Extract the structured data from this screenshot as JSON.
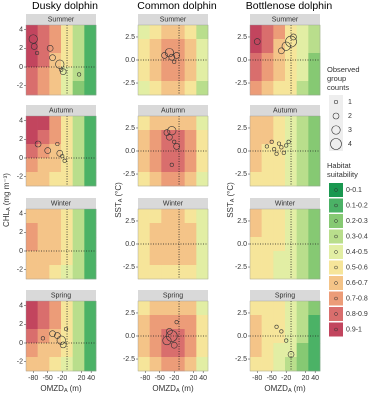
{
  "chart_data": {
    "type": "heatmap",
    "xlabel": {
      "main": "OMZD",
      "sub": "A",
      "unit": "(m)"
    },
    "xlim": [
      -95,
      50
    ],
    "xticks": [
      -80,
      -50,
      -20,
      20,
      40
    ],
    "reference_lines": {
      "x": -10,
      "y": 0
    },
    "columns": [
      {
        "title": "Dusky dolphin",
        "ylabel": {
          "main": "CHL",
          "sub": "A",
          "unit": "(mg m⁻³)"
        },
        "ylim": [
          -3,
          4.5
        ],
        "yticks": [
          -2,
          0,
          2,
          4
        ],
        "panels": [
          {
            "label": "Summer",
            "grid": [
              [
                0.95,
                0.85,
                0.75,
                0.55,
                0.35,
                0.15
              ],
              [
                0.95,
                0.85,
                0.75,
                0.55,
                0.35,
                0.15
              ],
              [
                0.95,
                0.85,
                0.65,
                0.55,
                0.35,
                0.15
              ],
              [
                0.85,
                0.75,
                0.65,
                0.45,
                0.35,
                0.15
              ],
              [
                0.85,
                0.75,
                0.65,
                0.45,
                0.25,
                0.15
              ]
            ],
            "points": {
              "x": [
                -80,
                -78,
                -72,
                -45,
                -40,
                -25,
                -22,
                -18,
                15
              ],
              "y": [
                3,
                2.2,
                1.5,
                2,
                1,
                0.3,
                -0.3,
                -0.5,
                -0.8
              ],
              "count": [
                3,
                2,
                1,
                2,
                2,
                3,
                1,
                2,
                1
              ]
            }
          },
          {
            "label": "Autumn",
            "grid": [
              [
                0.95,
                0.95,
                0.75,
                0.55,
                0.35,
                0.15
              ],
              [
                0.95,
                0.85,
                0.75,
                0.55,
                0.35,
                0.15
              ],
              [
                0.85,
                0.75,
                0.65,
                0.55,
                0.35,
                0.15
              ],
              [
                0.75,
                0.65,
                0.65,
                0.55,
                0.35,
                0.15
              ],
              [
                0.65,
                0.65,
                0.55,
                0.55,
                0.35,
                0.15
              ]
            ],
            "points": {
              "x": [
                -70,
                -50,
                -30,
                -25,
                -20,
                -15
              ],
              "y": [
                1.5,
                0.8,
                1.5,
                0.5,
                0.2,
                -0.3
              ],
              "count": [
                2,
                2,
                1,
                2,
                1,
                1
              ]
            }
          },
          {
            "label": "Winter",
            "grid": [
              [
                0.65,
                0.65,
                0.65,
                0.55,
                0.35,
                0.15
              ],
              [
                0.75,
                0.65,
                0.65,
                0.55,
                0.35,
                0.15
              ],
              [
                0.75,
                0.65,
                0.65,
                0.55,
                0.35,
                0.15
              ],
              [
                0.65,
                0.65,
                0.65,
                0.55,
                0.35,
                0.15
              ],
              [
                0.65,
                0.65,
                0.55,
                0.45,
                0.35,
                0.15
              ]
            ],
            "points": {
              "x": [],
              "y": [],
              "count": []
            }
          },
          {
            "label": "Spring",
            "grid": [
              [
                0.95,
                0.85,
                0.75,
                0.55,
                0.35,
                0.15
              ],
              [
                0.95,
                0.85,
                0.75,
                0.55,
                0.35,
                0.15
              ],
              [
                0.85,
                0.75,
                0.65,
                0.55,
                0.35,
                0.15
              ],
              [
                0.75,
                0.65,
                0.65,
                0.55,
                0.35,
                0.15
              ],
              [
                0.65,
                0.65,
                0.55,
                0.45,
                0.35,
                0.15
              ]
            ],
            "points": {
              "x": [
                -60,
                -40,
                -30,
                -22,
                -18,
                -12
              ],
              "y": [
                0.5,
                1,
                0.8,
                0.3,
                -0.2,
                1.5
              ],
              "count": [
                1,
                2,
                2,
                3,
                2,
                1
              ]
            }
          }
        ]
      },
      {
        "title": "Common dolphin",
        "ylabel": {
          "main": "SST",
          "sub": "A",
          "unit": "(°C)"
        },
        "ylim": [
          -3.8,
          3.8
        ],
        "yticks": [
          -2.5,
          {
            "value": 0,
            "label": "0.0"
          },
          2.5
        ],
        "panels": [
          {
            "label": "Summer",
            "grid": [
              [
                0.45,
                0.55,
                0.65,
                0.65,
                0.55,
                0.35
              ],
              [
                0.55,
                0.65,
                0.75,
                0.75,
                0.65,
                0.45
              ],
              [
                0.55,
                0.65,
                0.75,
                0.75,
                0.65,
                0.45
              ],
              [
                0.55,
                0.65,
                0.75,
                0.75,
                0.65,
                0.45
              ],
              [
                0.45,
                0.55,
                0.65,
                0.65,
                0.55,
                0.35
              ]
            ],
            "points": {
              "x": [
                -40,
                -30,
                -25,
                -20,
                -15
              ],
              "y": [
                0.5,
                0.8,
                0.3,
                -0.2,
                0.5
              ],
              "count": [
                2,
                3,
                2,
                1,
                2
              ]
            }
          },
          {
            "label": "Autumn",
            "grid": [
              [
                0.55,
                0.65,
                0.65,
                0.65,
                0.65,
                0.45
              ],
              [
                0.65,
                0.75,
                0.85,
                0.85,
                0.75,
                0.55
              ],
              [
                0.65,
                0.75,
                0.85,
                0.85,
                0.75,
                0.55
              ],
              [
                0.65,
                0.75,
                0.85,
                0.85,
                0.75,
                0.55
              ],
              [
                0.55,
                0.65,
                0.75,
                0.75,
                0.65,
                0.45
              ]
            ],
            "points": {
              "x": [
                -35,
                -30,
                -25,
                -20,
                -15,
                -25
              ],
              "y": [
                2,
                1.5,
                2.2,
                1,
                0.5,
                -1.5
              ],
              "count": [
                2,
                2,
                3,
                1,
                2,
                1
              ]
            }
          },
          {
            "label": "Winter",
            "grid": [
              [
                0.55,
                0.55,
                0.65,
                0.65,
                0.55,
                0.45
              ],
              [
                0.55,
                0.65,
                0.65,
                0.65,
                0.65,
                0.45
              ],
              [
                0.55,
                0.65,
                0.65,
                0.65,
                0.65,
                0.45
              ],
              [
                0.55,
                0.65,
                0.65,
                0.65,
                0.65,
                0.45
              ],
              [
                0.55,
                0.55,
                0.55,
                0.55,
                0.55,
                0.45
              ]
            ],
            "points": {
              "x": [],
              "y": [],
              "count": []
            }
          },
          {
            "label": "Spring",
            "grid": [
              [
                0.55,
                0.65,
                0.65,
                0.65,
                0.65,
                0.45
              ],
              [
                0.65,
                0.75,
                0.75,
                0.75,
                0.75,
                0.55
              ],
              [
                0.65,
                0.75,
                0.85,
                0.85,
                0.75,
                0.55
              ],
              [
                0.65,
                0.75,
                0.85,
                0.85,
                0.75,
                0.55
              ],
              [
                0.55,
                0.65,
                0.75,
                0.75,
                0.65,
                0.45
              ]
            ],
            "points": {
              "x": [
                -35,
                -30,
                -25,
                -20,
                -15
              ],
              "y": [
                -0.5,
                0.5,
                0,
                -1,
                1.5
              ],
              "count": [
                3,
                2,
                4,
                2,
                1
              ]
            }
          }
        ]
      },
      {
        "title": "Bottlenose dolphin",
        "ylabel": {
          "main": "SST",
          "sub": "A",
          "unit": "(°C)"
        },
        "ylim": [
          -3.8,
          3.8
        ],
        "yticks": [
          -2.5,
          {
            "value": 0,
            "label": "0.0"
          },
          2.5
        ],
        "panels": [
          {
            "label": "Summer",
            "grid": [
              [
                0.95,
                0.85,
                0.75,
                0.55,
                0.45,
                0.35
              ],
              [
                0.95,
                0.85,
                0.65,
                0.55,
                0.45,
                0.35
              ],
              [
                0.85,
                0.75,
                0.65,
                0.55,
                0.45,
                0.25
              ],
              [
                0.85,
                0.75,
                0.65,
                0.55,
                0.45,
                0.25
              ],
              [
                0.75,
                0.65,
                0.55,
                0.55,
                0.35,
                0.25
              ]
            ],
            "points": {
              "x": [
                -80,
                -30,
                -20,
                -10,
                -5
              ],
              "y": [
                2,
                1,
                1.5,
                2,
                2.5
              ],
              "count": [
                2,
                2,
                3,
                4,
                2
              ]
            }
          },
          {
            "label": "Autumn",
            "grid": [
              [
                0.65,
                0.65,
                0.55,
                0.45,
                0.35,
                0.25
              ],
              [
                0.65,
                0.65,
                0.55,
                0.45,
                0.35,
                0.25
              ],
              [
                0.65,
                0.55,
                0.55,
                0.45,
                0.35,
                0.25
              ],
              [
                0.65,
                0.55,
                0.55,
                0.45,
                0.35,
                0.25
              ],
              [
                0.55,
                0.55,
                0.55,
                0.45,
                0.35,
                0.25
              ]
            ],
            "points": {
              "x": [
                -60,
                -50,
                -45,
                -40,
                -35,
                -30,
                -25,
                -20,
                -15
              ],
              "y": [
                0.5,
                1,
                0.2,
                -0.3,
                0.8,
                0.4,
                -0.2,
                0.6,
                1
              ],
              "count": [
                1,
                1,
                1,
                1,
                1,
                1,
                1,
                1,
                1
              ]
            }
          },
          {
            "label": "Winter",
            "grid": [
              [
                0.65,
                0.55,
                0.55,
                0.45,
                0.35,
                0.25
              ],
              [
                0.65,
                0.55,
                0.55,
                0.45,
                0.35,
                0.25
              ],
              [
                0.55,
                0.55,
                0.55,
                0.45,
                0.35,
                0.25
              ],
              [
                0.55,
                0.55,
                0.45,
                0.45,
                0.35,
                0.25
              ],
              [
                0.55,
                0.55,
                0.45,
                0.45,
                0.35,
                0.25
              ]
            ],
            "points": {
              "x": [],
              "y": [],
              "count": []
            }
          },
          {
            "label": "Spring",
            "grid": [
              [
                0.55,
                0.55,
                0.55,
                0.45,
                0.35,
                0.25
              ],
              [
                0.65,
                0.55,
                0.55,
                0.45,
                0.35,
                0.15
              ],
              [
                0.65,
                0.55,
                0.55,
                0.45,
                0.35,
                0.15
              ],
              [
                0.65,
                0.55,
                0.45,
                0.45,
                0.25,
                0.15
              ],
              [
                0.55,
                0.55,
                0.45,
                0.35,
                0.25,
                0.15
              ]
            ],
            "points": {
              "x": [
                -40,
                -30,
                -20,
                -10
              ],
              "y": [
                1,
                0.5,
                -0.5,
                -2
              ],
              "count": [
                1,
                1,
                1,
                2
              ]
            }
          }
        ]
      }
    ],
    "legend": {
      "size_title": [
        "Observed",
        "group",
        "counts"
      ],
      "size_values": [
        1,
        2,
        3,
        4
      ],
      "color_title": [
        "Habitat",
        "suitability"
      ],
      "classes": [
        "0-0.1",
        "0.1-0.2",
        "0.2-0.3",
        "0.3-0.4",
        "0.4-0.5",
        "0.5-0.6",
        "0.6-0.7",
        "0.7-0.8",
        "0.8-0.9",
        "0.9-1"
      ],
      "colors": [
        "#1a9850",
        "#4bb266",
        "#86c973",
        "#b9de8c",
        "#e2eea4",
        "#f6e59a",
        "#f4c488",
        "#ec9c78",
        "#d96e6d",
        "#c2455e"
      ]
    }
  }
}
